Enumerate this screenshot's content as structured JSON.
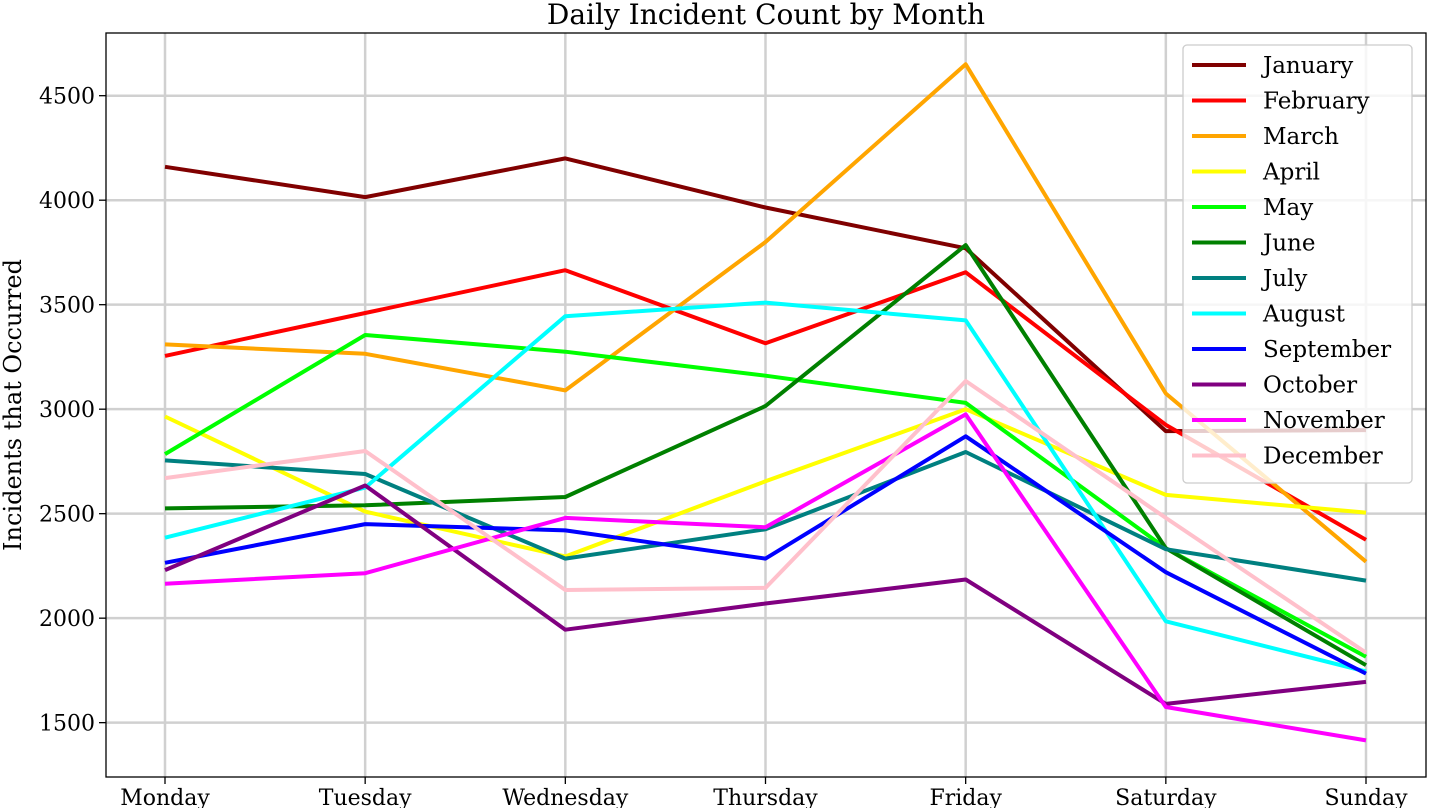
{
  "chart_data": {
    "type": "line",
    "title": "Daily Incident Count by Month",
    "xlabel": "",
    "ylabel": "Incidents that Occurred",
    "categories": [
      "Monday",
      "Tuesday",
      "Wednesday",
      "Thursday",
      "Friday",
      "Saturday",
      "Sunday"
    ],
    "ylim": [
      1240,
      4800
    ],
    "yticks": [
      1500,
      2000,
      2500,
      3000,
      3500,
      4000,
      4500
    ],
    "grid": true,
    "legend_position": "top-right",
    "series": [
      {
        "name": "January",
        "color": "#800000",
        "values": [
          4160,
          4015,
          4200,
          3965,
          3770,
          2895,
          2900
        ]
      },
      {
        "name": "February",
        "color": "#ff0000",
        "values": [
          3255,
          3460,
          3665,
          3315,
          3655,
          2925,
          2375
        ]
      },
      {
        "name": "March",
        "color": "#ffa500",
        "values": [
          3310,
          3265,
          3090,
          3800,
          4650,
          3075,
          2270
        ]
      },
      {
        "name": "April",
        "color": "#ffff00",
        "values": [
          2965,
          2510,
          2295,
          2655,
          3000,
          2590,
          2505
        ]
      },
      {
        "name": "May",
        "color": "#00ff00",
        "values": [
          2785,
          3355,
          3275,
          3160,
          3030,
          2335,
          1815
        ]
      },
      {
        "name": "June",
        "color": "#008000",
        "values": [
          2525,
          2540,
          2580,
          3015,
          3785,
          2335,
          1775
        ]
      },
      {
        "name": "July",
        "color": "#008080",
        "values": [
          2755,
          2690,
          2285,
          2425,
          2795,
          2330,
          2180
        ]
      },
      {
        "name": "August",
        "color": "#00ffff",
        "values": [
          2385,
          2625,
          3445,
          3510,
          3425,
          1985,
          1745
        ]
      },
      {
        "name": "September",
        "color": "#0000ff",
        "values": [
          2265,
          2450,
          2420,
          2285,
          2870,
          2220,
          1735
        ]
      },
      {
        "name": "October",
        "color": "#800080",
        "values": [
          2230,
          2635,
          1945,
          2070,
          2185,
          1590,
          1695
        ]
      },
      {
        "name": "November",
        "color": "#ff00ff",
        "values": [
          2165,
          2215,
          2480,
          2435,
          2975,
          1575,
          1415
        ]
      },
      {
        "name": "December",
        "color": "#ffc0cb",
        "values": [
          2670,
          2800,
          2135,
          2145,
          3135,
          2480,
          1835
        ]
      }
    ]
  }
}
